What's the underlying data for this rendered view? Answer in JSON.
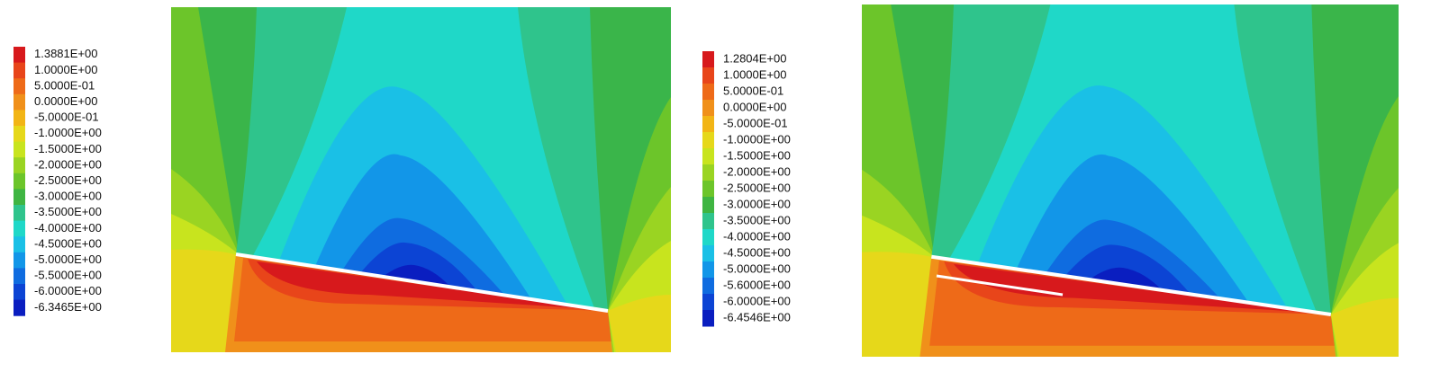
{
  "panels": [
    {
      "legend": {
        "labels": [
          "1.3881E+00",
          "1.0000E+00",
          "5.0000E-01",
          "0.0000E+00",
          "-5.0000E-01",
          "-1.0000E+00",
          "-1.5000E+00",
          "-2.0000E+00",
          "-2.5000E+00",
          "-3.0000E+00",
          "-3.5000E+00",
          "-4.0000E+00",
          "-4.5000E+00",
          "-5.0000E+00",
          "-5.5000E+00",
          "-6.0000E+00",
          "-6.3465E+00"
        ],
        "colors": [
          "#d7191c",
          "#e8451a",
          "#ee6a18",
          "#f0901a",
          "#f2b515",
          "#e6d81a",
          "#c8e41e",
          "#9ad422",
          "#6cc52a",
          "#3fb542",
          "#2fc48c",
          "#1fd8c8",
          "#1ac0e6",
          "#1296e8",
          "#0f6ce0",
          "#0c44d4",
          "#0a1ec0"
        ]
      }
    },
    {
      "legend": {
        "labels": [
          "1.2804E+00",
          "1.0000E+00",
          "5.0000E-01",
          "0.0000E+00",
          "-5.0000E-01",
          "-1.0000E+00",
          "-1.5000E+00",
          "-2.0000E+00",
          "-2.5000E+00",
          "-3.0000E+00",
          "-3.5000E+00",
          "-4.0000E+00",
          "-4.5000E+00",
          "-5.0000E+00",
          "-5.6000E+00",
          "-6.0000E+00",
          "-6.4546E+00"
        ],
        "colors": [
          "#d7191c",
          "#e8451a",
          "#ee6a18",
          "#f0901a",
          "#f2b515",
          "#e6d81a",
          "#c8e41e",
          "#9ad422",
          "#6cc52a",
          "#3fb542",
          "#2fc48c",
          "#1fd8c8",
          "#1ac0e6",
          "#1296e8",
          "#0f6ce0",
          "#0c44d4",
          "#0a1ec0"
        ]
      }
    }
  ]
}
